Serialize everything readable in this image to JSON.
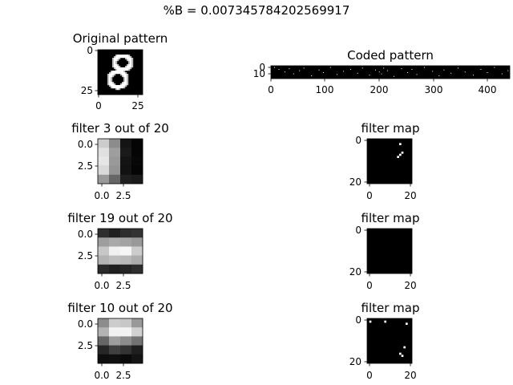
{
  "figure": {
    "suptitle": "%B = 0.007345784202569917"
  },
  "chart_data": [
    {
      "type": "heatmap",
      "title": "Original pattern",
      "cmap": "gray",
      "xticks": [
        "0",
        "25"
      ],
      "yticks": [
        "0",
        "25"
      ],
      "size": [
        28,
        28
      ],
      "content": "handwritten digit 8 (white strokes on black)"
    },
    {
      "type": "heatmap",
      "title": "Coded pattern",
      "cmap": "gray",
      "xticks": [
        "0",
        "100",
        "200",
        "300",
        "400"
      ],
      "yticks": [
        "0",
        "10"
      ],
      "size": [
        20,
        440
      ],
      "sparse_points": [
        [
          2,
          6
        ],
        [
          5,
          14
        ],
        [
          9,
          25
        ],
        [
          4,
          33
        ],
        [
          12,
          41
        ],
        [
          7,
          52
        ],
        [
          3,
          60
        ],
        [
          15,
          74
        ],
        [
          6,
          88
        ],
        [
          10,
          96
        ],
        [
          2,
          109
        ],
        [
          13,
          121
        ],
        [
          8,
          133
        ],
        [
          5,
          146
        ],
        [
          11,
          159
        ],
        [
          3,
          168
        ],
        [
          14,
          181
        ],
        [
          6,
          192
        ],
        [
          9,
          199
        ],
        [
          12,
          203
        ],
        [
          3,
          207
        ],
        [
          7,
          214
        ],
        [
          16,
          226
        ],
        [
          4,
          240
        ],
        [
          10,
          251
        ],
        [
          5,
          259
        ],
        [
          13,
          268
        ],
        [
          2,
          282
        ],
        [
          8,
          297
        ],
        [
          15,
          309
        ],
        [
          6,
          318
        ],
        [
          11,
          331
        ],
        [
          3,
          344
        ],
        [
          9,
          357
        ],
        [
          14,
          372
        ],
        [
          5,
          386
        ],
        [
          10,
          398
        ],
        [
          2,
          411
        ],
        [
          12,
          425
        ],
        [
          7,
          436
        ]
      ]
    },
    {
      "type": "heatmap",
      "title": "filter 3 out of 20",
      "cmap": "gray",
      "xticks": [
        "0.0",
        "2.5"
      ],
      "yticks": [
        "0.0",
        "2.5"
      ],
      "values": [
        [
          0.8,
          0.55,
          0.08,
          0.02
        ],
        [
          0.88,
          0.62,
          0.1,
          0.02
        ],
        [
          0.9,
          0.6,
          0.08,
          0.03
        ],
        [
          0.85,
          0.58,
          0.07,
          0.02
        ],
        [
          0.6,
          0.4,
          0.12,
          0.1
        ]
      ]
    },
    {
      "type": "heatmap",
      "title": "filter map",
      "cmap": "gray",
      "xticks": [
        "0",
        "20"
      ],
      "yticks": [
        "0",
        "20"
      ],
      "size": [
        21,
        21
      ],
      "points": [
        [
          2,
          15
        ],
        [
          6,
          16
        ],
        [
          7,
          15
        ],
        [
          8,
          14
        ]
      ]
    },
    {
      "type": "heatmap",
      "title": "filter 19 out of 20",
      "cmap": "gray",
      "xticks": [
        "0.0",
        "2.5"
      ],
      "yticks": [
        "0.0",
        "2.5"
      ],
      "values": [
        [
          0.18,
          0.12,
          0.18,
          0.2
        ],
        [
          0.62,
          0.66,
          0.64,
          0.6
        ],
        [
          0.78,
          0.94,
          0.96,
          0.8
        ],
        [
          0.7,
          0.74,
          0.72,
          0.68
        ],
        [
          0.16,
          0.12,
          0.14,
          0.18
        ]
      ]
    },
    {
      "type": "heatmap",
      "title": "filter map",
      "cmap": "gray",
      "xticks": [
        "0",
        "20"
      ],
      "yticks": [
        "0",
        "20"
      ],
      "size": [
        21,
        21
      ],
      "points": []
    },
    {
      "type": "heatmap",
      "title": "filter 10 out of 20",
      "cmap": "gray",
      "xticks": [
        "0.0",
        "2.5"
      ],
      "yticks": [
        "0.0",
        "2.5"
      ],
      "values": [
        [
          0.55,
          0.8,
          0.78,
          0.6
        ],
        [
          0.7,
          0.95,
          0.95,
          0.82
        ],
        [
          0.4,
          0.62,
          0.55,
          0.45
        ],
        [
          0.15,
          0.25,
          0.2,
          0.12
        ],
        [
          0.05,
          0.06,
          0.04,
          0.08
        ]
      ]
    },
    {
      "type": "heatmap",
      "title": "filter map",
      "cmap": "gray",
      "xticks": [
        "0",
        "20"
      ],
      "yticks": [
        "0",
        "20"
      ],
      "size": [
        21,
        21
      ],
      "points": [
        [
          1,
          1
        ],
        [
          1,
          8
        ],
        [
          2,
          18
        ],
        [
          13,
          17
        ],
        [
          16,
          15
        ],
        [
          17,
          16
        ]
      ]
    }
  ]
}
